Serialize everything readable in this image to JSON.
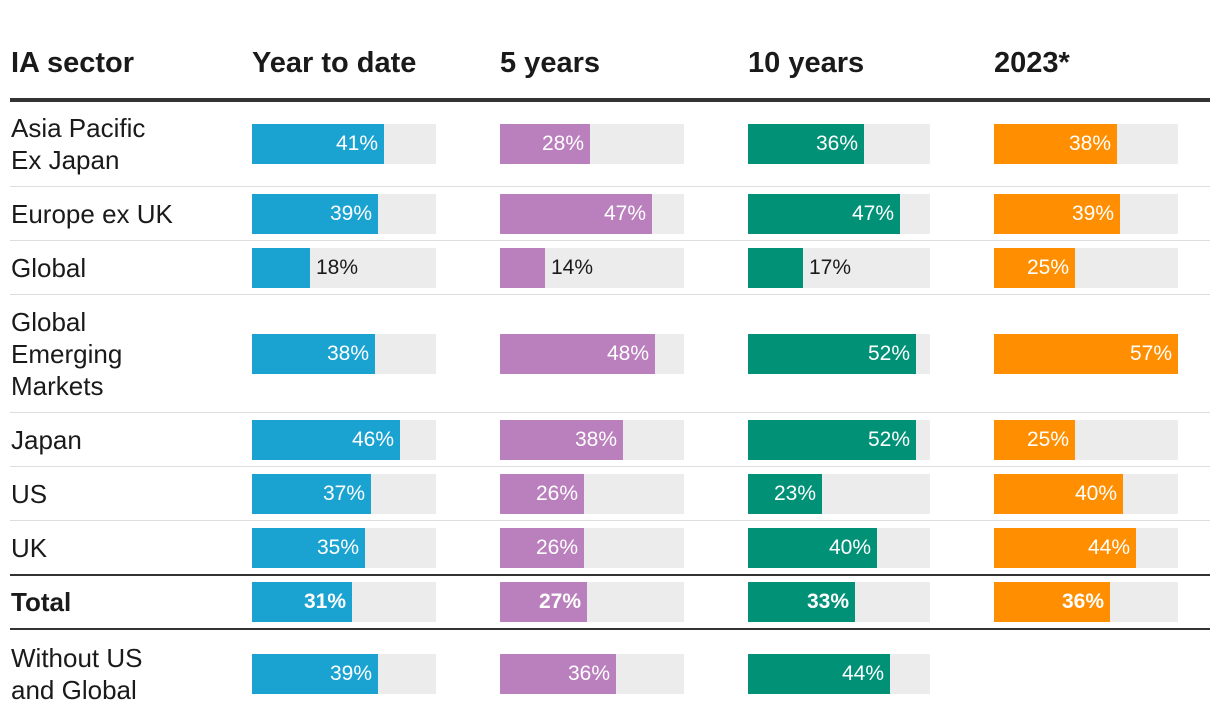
{
  "chart_data": {
    "type": "table",
    "headers": [
      "IA sector",
      "Year to date",
      "5 years",
      "10 years",
      "2023*"
    ],
    "colors": [
      "#1aa3d1",
      "#ba7fbd",
      "#009177",
      "#ff8f00"
    ],
    "track_color": "#ececec",
    "scale_max": 57,
    "rows": [
      {
        "label": [
          "Asia Pacific",
          "Ex Japan"
        ],
        "values": [
          41,
          28,
          36,
          38
        ],
        "texts": [
          "41%",
          "28%",
          "36%",
          "38%"
        ],
        "bold": false
      },
      {
        "label": [
          "Europe ex UK"
        ],
        "values": [
          39,
          47,
          47,
          39
        ],
        "texts": [
          "39%",
          "47%",
          "47%",
          "39%"
        ],
        "bold": false
      },
      {
        "label": [
          "Global"
        ],
        "values": [
          18,
          14,
          17,
          25
        ],
        "texts": [
          "18%",
          "14%",
          "17%",
          "25%"
        ],
        "bold": false
      },
      {
        "label": [
          "Global",
          "Emerging",
          "Markets"
        ],
        "values": [
          38,
          48,
          52,
          57
        ],
        "texts": [
          "38%",
          "48%",
          "52%",
          "57%"
        ],
        "bold": false
      },
      {
        "label": [
          "Japan"
        ],
        "values": [
          46,
          38,
          52,
          25
        ],
        "texts": [
          "46%",
          "38%",
          "52%",
          "25%"
        ],
        "bold": false
      },
      {
        "label": [
          "US"
        ],
        "values": [
          37,
          26,
          23,
          40
        ],
        "texts": [
          "37%",
          "26%",
          "23%",
          "40%"
        ],
        "bold": false
      },
      {
        "label": [
          "UK"
        ],
        "values": [
          35,
          26,
          40,
          44
        ],
        "texts": [
          "35%",
          "26%",
          "40%",
          "44%"
        ],
        "bold": false
      },
      {
        "label": [
          "Total"
        ],
        "values": [
          31,
          27,
          33,
          36
        ],
        "texts": [
          "31%",
          "27%",
          "33%",
          "36%"
        ],
        "bold": true
      },
      {
        "label": [
          "Without US",
          "and Global"
        ],
        "values": [
          39,
          36,
          44,
          null
        ],
        "texts": [
          "39%",
          "36%",
          "44%",
          ""
        ],
        "bold": false
      }
    ]
  }
}
